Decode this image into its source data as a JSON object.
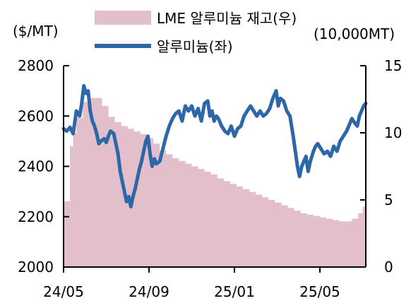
{
  "chart_data": {
    "type": "area+line",
    "title": "",
    "left_axis_unit": "($/MT)",
    "right_axis_unit": "(10,000MT)",
    "x_ticks": [
      "24/05",
      "24/09",
      "25/01",
      "25/05"
    ],
    "left_ticks": [
      "2800",
      "2600",
      "2400",
      "2200",
      "2000"
    ],
    "right_ticks": [
      "15",
      "10",
      "5",
      "0"
    ],
    "ylim_left": [
      2000,
      2800
    ],
    "ylim_right": [
      0,
      15
    ],
    "legend": [
      {
        "label": "LME 알루미늄 재고(우)",
        "style": "area",
        "color": "#e2bfcb"
      },
      {
        "label": "알루미늄(좌)",
        "style": "line",
        "color": "#2e67a8"
      }
    ],
    "series": [
      {
        "name": "LME 알루미늄 재고(우)",
        "axis": "right",
        "points": [
          [
            0.0,
            4.9
          ],
          [
            0.3,
            9.0
          ],
          [
            0.45,
            10.0
          ],
          [
            0.6,
            11.1
          ],
          [
            0.9,
            12.3
          ],
          [
            1.2,
            12.6
          ],
          [
            1.5,
            12.6
          ],
          [
            1.8,
            12.0
          ],
          [
            2.1,
            11.2
          ],
          [
            2.4,
            10.8
          ],
          [
            2.7,
            10.5
          ],
          [
            3.0,
            10.3
          ],
          [
            3.3,
            10.1
          ],
          [
            3.6,
            9.9
          ],
          [
            3.9,
            9.6
          ],
          [
            4.2,
            9.2
          ],
          [
            4.5,
            8.7
          ],
          [
            4.8,
            8.4
          ],
          [
            5.1,
            8.1
          ],
          [
            5.4,
            7.9
          ],
          [
            5.7,
            7.7
          ],
          [
            6.0,
            7.5
          ],
          [
            6.3,
            7.3
          ],
          [
            6.6,
            7.1
          ],
          [
            6.9,
            6.9
          ],
          [
            7.2,
            6.6
          ],
          [
            7.5,
            6.4
          ],
          [
            7.8,
            6.2
          ],
          [
            8.1,
            6.0
          ],
          [
            8.4,
            5.8
          ],
          [
            8.7,
            5.6
          ],
          [
            9.0,
            5.4
          ],
          [
            9.3,
            5.2
          ],
          [
            9.6,
            5.0
          ],
          [
            9.9,
            4.8
          ],
          [
            10.2,
            4.6
          ],
          [
            10.5,
            4.4
          ],
          [
            10.8,
            4.2
          ],
          [
            11.1,
            4.0
          ],
          [
            11.4,
            3.9
          ],
          [
            11.7,
            3.8
          ],
          [
            12.0,
            3.7
          ],
          [
            12.3,
            3.6
          ],
          [
            12.6,
            3.5
          ],
          [
            12.9,
            3.4
          ],
          [
            13.2,
            3.4
          ],
          [
            13.5,
            3.6
          ],
          [
            13.8,
            4.0
          ],
          [
            14.0,
            4.5
          ],
          [
            14.1,
            4.7
          ]
        ]
      },
      {
        "name": "알루미늄(좌)",
        "axis": "left",
        "points": [
          [
            0.0,
            2550
          ],
          [
            0.15,
            2540
          ],
          [
            0.3,
            2555
          ],
          [
            0.45,
            2530
          ],
          [
            0.6,
            2620
          ],
          [
            0.75,
            2600
          ],
          [
            0.85,
            2650
          ],
          [
            0.95,
            2720
          ],
          [
            1.05,
            2690
          ],
          [
            1.15,
            2700
          ],
          [
            1.25,
            2620
          ],
          [
            1.35,
            2580
          ],
          [
            1.45,
            2560
          ],
          [
            1.55,
            2530
          ],
          [
            1.65,
            2490
          ],
          [
            1.75,
            2500
          ],
          [
            1.9,
            2510
          ],
          [
            2.0,
            2495
          ],
          [
            2.1,
            2520
          ],
          [
            2.2,
            2540
          ],
          [
            2.35,
            2530
          ],
          [
            2.45,
            2490
          ],
          [
            2.55,
            2450
          ],
          [
            2.65,
            2380
          ],
          [
            2.75,
            2340
          ],
          [
            2.85,
            2300
          ],
          [
            2.95,
            2260
          ],
          [
            3.05,
            2280
          ],
          [
            3.15,
            2240
          ],
          [
            3.25,
            2280
          ],
          [
            3.35,
            2310
          ],
          [
            3.45,
            2350
          ],
          [
            3.55,
            2390
          ],
          [
            3.65,
            2420
          ],
          [
            3.75,
            2460
          ],
          [
            3.85,
            2500
          ],
          [
            3.95,
            2520
          ],
          [
            4.05,
            2450
          ],
          [
            4.15,
            2400
          ],
          [
            4.25,
            2430
          ],
          [
            4.35,
            2410
          ],
          [
            4.5,
            2420
          ],
          [
            4.65,
            2470
          ],
          [
            4.8,
            2520
          ],
          [
            4.95,
            2560
          ],
          [
            5.1,
            2590
          ],
          [
            5.25,
            2610
          ],
          [
            5.4,
            2620
          ],
          [
            5.55,
            2580
          ],
          [
            5.7,
            2640
          ],
          [
            5.85,
            2620
          ],
          [
            6.0,
            2640
          ],
          [
            6.15,
            2600
          ],
          [
            6.3,
            2630
          ],
          [
            6.45,
            2580
          ],
          [
            6.6,
            2650
          ],
          [
            6.75,
            2660
          ],
          [
            6.85,
            2600
          ],
          [
            6.95,
            2620
          ],
          [
            7.05,
            2580
          ],
          [
            7.15,
            2600
          ],
          [
            7.25,
            2590
          ],
          [
            7.4,
            2560
          ],
          [
            7.55,
            2540
          ],
          [
            7.7,
            2530
          ],
          [
            7.85,
            2560
          ],
          [
            8.0,
            2520
          ],
          [
            8.15,
            2550
          ],
          [
            8.3,
            2560
          ],
          [
            8.45,
            2600
          ],
          [
            8.6,
            2620
          ],
          [
            8.75,
            2640
          ],
          [
            8.9,
            2620
          ],
          [
            9.05,
            2600
          ],
          [
            9.2,
            2620
          ],
          [
            9.35,
            2600
          ],
          [
            9.5,
            2610
          ],
          [
            9.65,
            2630
          ],
          [
            9.8,
            2670
          ],
          [
            9.95,
            2700
          ],
          [
            10.05,
            2640
          ],
          [
            10.15,
            2670
          ],
          [
            10.3,
            2660
          ],
          [
            10.45,
            2620
          ],
          [
            10.6,
            2600
          ],
          [
            10.75,
            2520
          ],
          [
            10.85,
            2460
          ],
          [
            10.95,
            2400
          ],
          [
            11.05,
            2360
          ],
          [
            11.15,
            2400
          ],
          [
            11.25,
            2420
          ],
          [
            11.35,
            2440
          ],
          [
            11.45,
            2380
          ],
          [
            11.55,
            2420
          ],
          [
            11.7,
            2460
          ],
          [
            11.8,
            2480
          ],
          [
            11.9,
            2490
          ],
          [
            12.05,
            2470
          ],
          [
            12.2,
            2450
          ],
          [
            12.35,
            2460
          ],
          [
            12.5,
            2440
          ],
          [
            12.65,
            2480
          ],
          [
            12.8,
            2460
          ],
          [
            12.95,
            2500
          ],
          [
            13.1,
            2520
          ],
          [
            13.25,
            2540
          ],
          [
            13.35,
            2560
          ],
          [
            13.5,
            2590
          ],
          [
            13.65,
            2570
          ],
          [
            13.75,
            2560
          ],
          [
            13.85,
            2600
          ],
          [
            13.95,
            2620
          ],
          [
            14.05,
            2640
          ],
          [
            14.15,
            2650
          ]
        ]
      }
    ],
    "x_domain": [
      0,
      14.15
    ],
    "grid": false,
    "legend_position": "top"
  }
}
